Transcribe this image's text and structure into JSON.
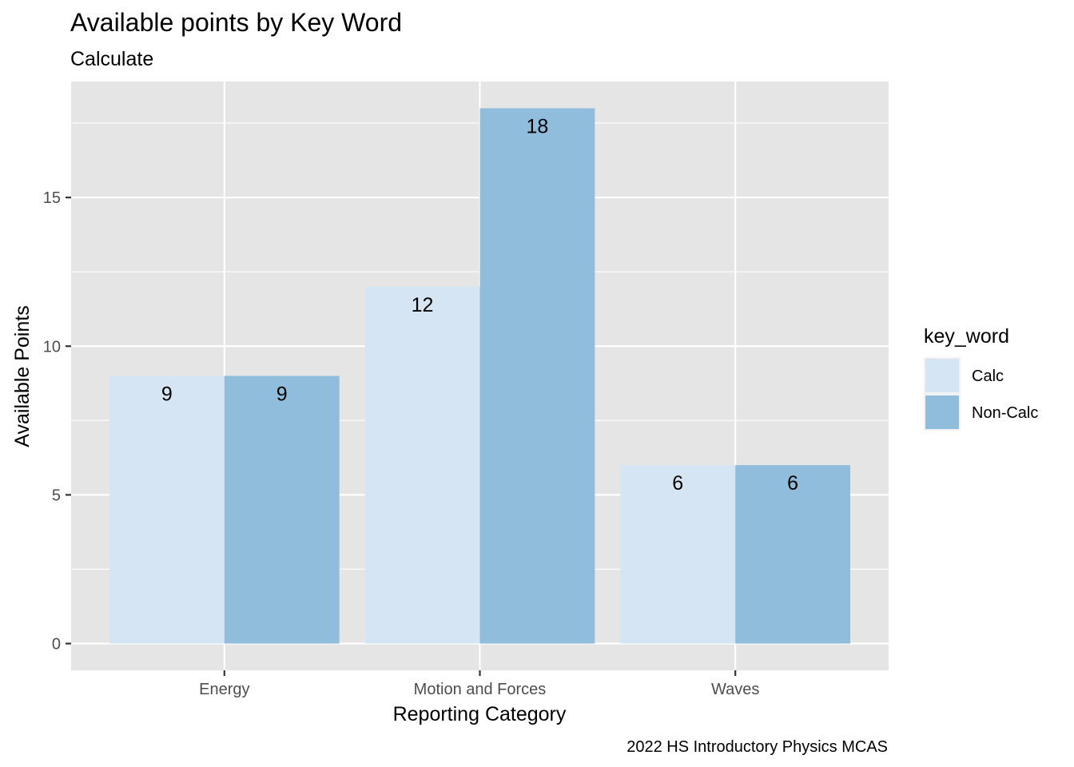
{
  "chart_data": {
    "type": "bar",
    "title": "Available points by Key Word",
    "subtitle": "Calculate",
    "xlabel": "Reporting Category",
    "ylabel": "Available Points",
    "caption": "2022 HS Introductory Physics MCAS",
    "categories": [
      "Energy",
      "Motion and Forces",
      "Waves"
    ],
    "series": [
      {
        "name": "Calc",
        "values": [
          9,
          12,
          6
        ],
        "color": "#d6e5f4"
      },
      {
        "name": "Non-Calc",
        "values": [
          9,
          18,
          6
        ],
        "color": "#90bddb"
      }
    ],
    "ylim": [
      -0.9,
      18.9
    ],
    "yticks": [
      0,
      5,
      10,
      15
    ],
    "legend": {
      "title": "key_word",
      "position": "right"
    },
    "grid": true,
    "panel_background": "#e5e5e5"
  }
}
